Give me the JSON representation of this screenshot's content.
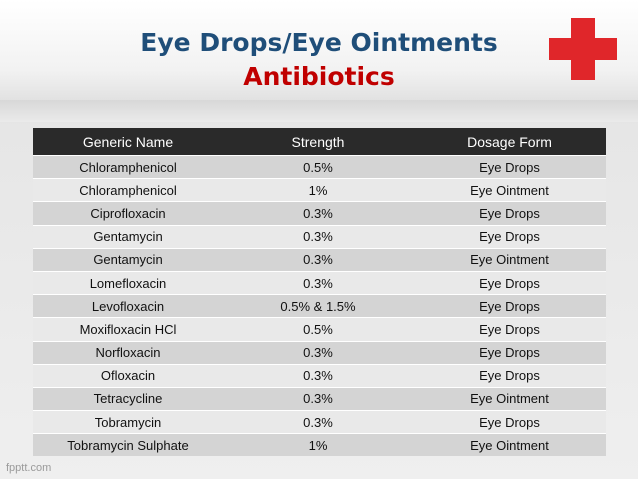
{
  "title": {
    "line1": "Eye Drops/Eye Ointments",
    "line2": "Antibiotics"
  },
  "colors": {
    "title_line1": "#1f4e79",
    "title_line2": "#c00000",
    "cross": "#e0262a",
    "header_bg": "#2a2a2a"
  },
  "icons": {
    "cross": "red-cross-icon"
  },
  "table": {
    "headers": [
      "Generic Name",
      "Strength",
      "Dosage Form"
    ],
    "rows": [
      [
        "Chloramphenicol",
        "0.5%",
        "Eye Drops"
      ],
      [
        "Chloramphenicol",
        "1%",
        "Eye Ointment"
      ],
      [
        "Ciprofloxacin",
        "0.3%",
        "Eye Drops"
      ],
      [
        "Gentamycin",
        "0.3%",
        "Eye Drops"
      ],
      [
        "Gentamycin",
        "0.3%",
        "Eye Ointment"
      ],
      [
        "Lomefloxacin",
        "0.3%",
        "Eye Drops"
      ],
      [
        "Levofloxacin",
        "0.5% & 1.5%",
        "Eye Drops"
      ],
      [
        "Moxifloxacin HCl",
        "0.5%",
        "Eye Drops"
      ],
      [
        "Norfloxacin",
        "0.3%",
        "Eye Drops"
      ],
      [
        "Ofloxacin",
        "0.3%",
        "Eye Drops"
      ],
      [
        "Tetracycline",
        "0.3%",
        "Eye Ointment"
      ],
      [
        "Tobramycin",
        "0.3%",
        "Eye Drops"
      ],
      [
        "Tobramycin  Sulphate",
        "1%",
        "Eye Ointment"
      ]
    ]
  },
  "footer": {
    "text": "fpptt.com"
  }
}
